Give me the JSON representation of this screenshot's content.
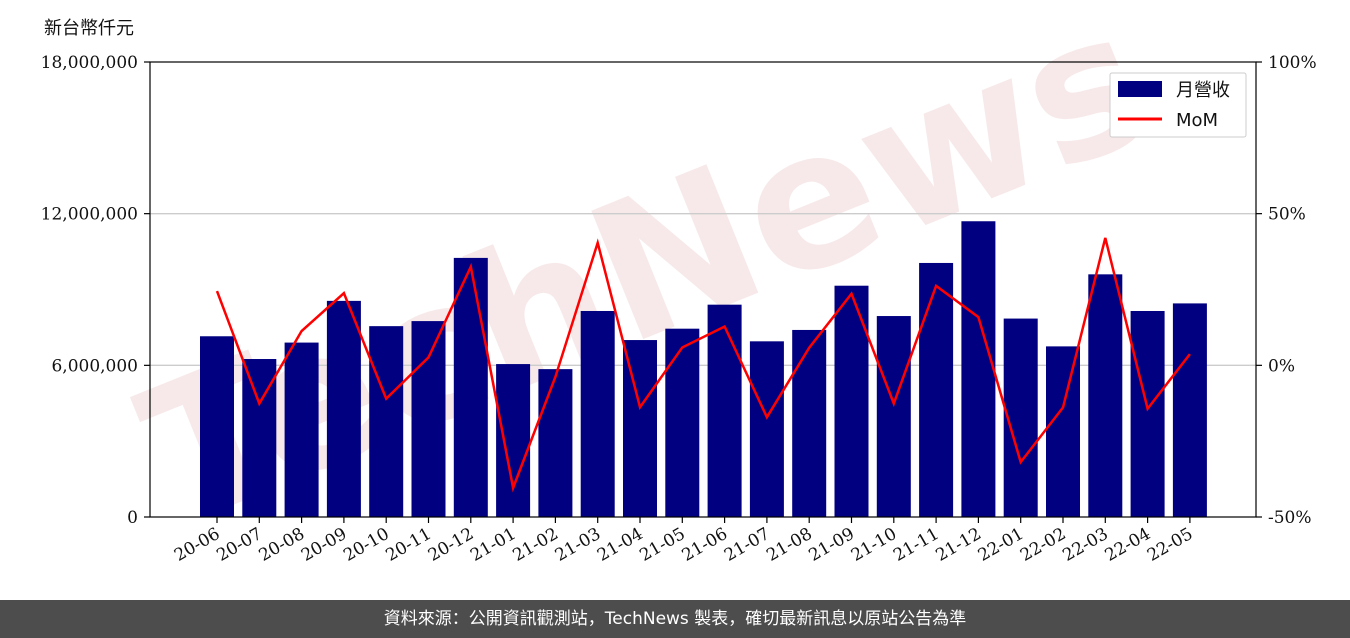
{
  "unit_label": "新台幣仟元",
  "watermark": "TechNews",
  "footer": "資料來源：公開資訊觀測站，TechNews 製表，確切最新訊息以原站公告為準",
  "colors": {
    "bar": "#000080",
    "line": "#ff0000",
    "grid": "#cccccc",
    "footer_bg": "#4d4d4d",
    "watermark": "#f2d8d8"
  },
  "chart_data": {
    "type": "bar",
    "categories": [
      "20-06",
      "20-07",
      "20-08",
      "20-09",
      "20-10",
      "20-11",
      "20-12",
      "21-01",
      "21-02",
      "21-03",
      "21-04",
      "21-05",
      "21-06",
      "21-07",
      "21-08",
      "21-09",
      "21-10",
      "21-11",
      "21-12",
      "22-01",
      "22-02",
      "22-03",
      "22-04",
      "22-05"
    ],
    "series": [
      {
        "name": "月營收",
        "type": "bar",
        "axis": "left",
        "values": [
          7150000,
          6250000,
          6900000,
          8550000,
          7550000,
          7750000,
          10250000,
          6050000,
          5850000,
          8150000,
          7000000,
          7450000,
          8400000,
          6950000,
          7400000,
          9150000,
          7950000,
          10050000,
          11700000,
          7850000,
          6750000,
          9600000,
          8150000,
          8450000
        ]
      },
      {
        "name": "MoM",
        "type": "line",
        "axis": "right",
        "values": [
          24.5,
          -12.6,
          11.3,
          23.8,
          -11.0,
          2.6,
          32.5,
          -40.4,
          -3.8,
          40.4,
          -13.8,
          5.9,
          12.8,
          -17.1,
          5.8,
          23.6,
          -12.6,
          26.2,
          15.9,
          -31.9,
          -13.9,
          42.0,
          -14.3,
          3.7
        ]
      }
    ],
    "yleft": {
      "lim": [
        0,
        18000000
      ],
      "ticks": [
        0,
        6000000,
        12000000,
        18000000
      ],
      "tick_labels": [
        "0",
        "6,000,000",
        "12,000,000",
        "18,000,000"
      ]
    },
    "yright": {
      "lim": [
        -50,
        100
      ],
      "ticks": [
        -50,
        0,
        50,
        100
      ],
      "tick_labels": [
        "-50%",
        "0%",
        "50%",
        "100%"
      ]
    },
    "grid": "horizontal",
    "legend": "top-right"
  }
}
